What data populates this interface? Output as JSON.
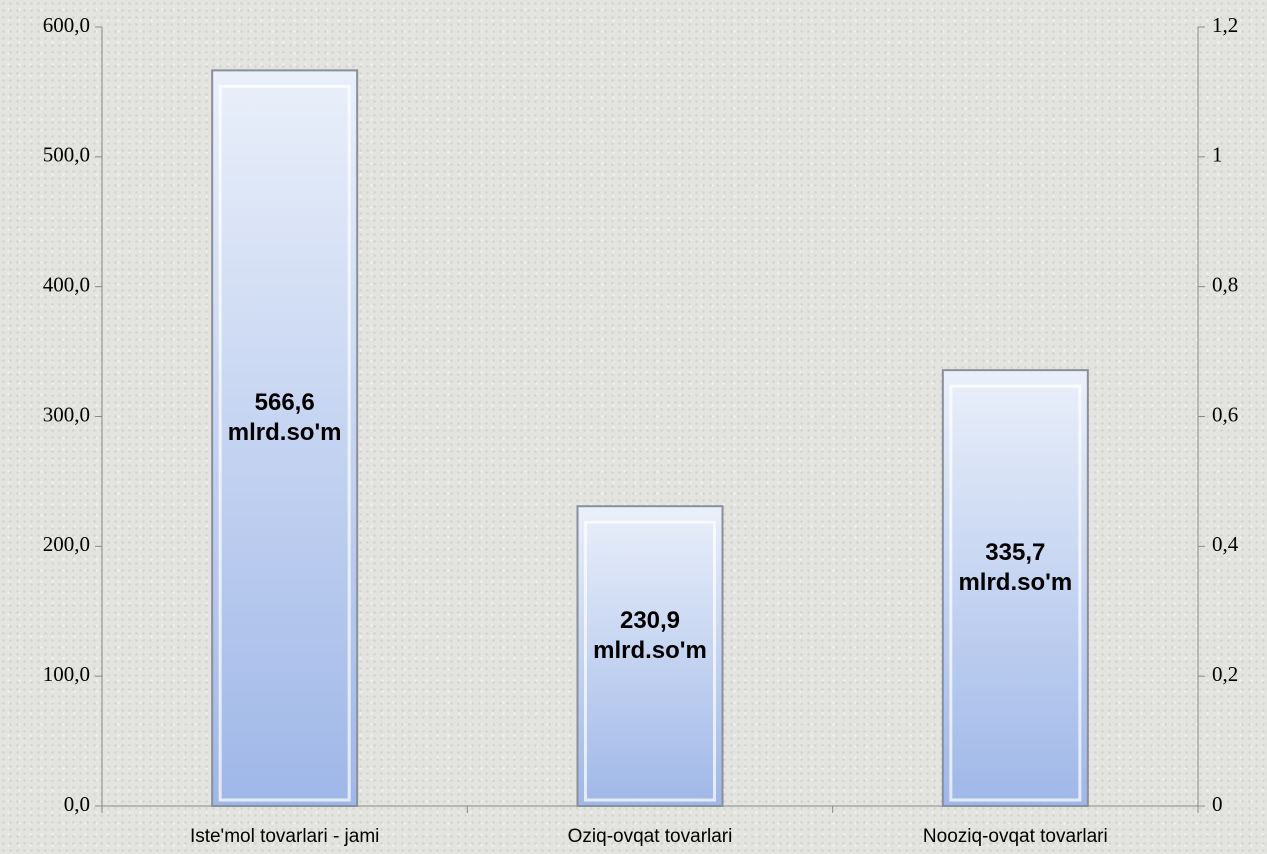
{
  "chart_data": {
    "type": "bar",
    "categories": [
      "Iste'mol tovarlari - jami",
      "Oziq-ovqat tovarlari",
      "Nooziq-ovqat tovarlari"
    ],
    "values": [
      566.6,
      230.9,
      335.7
    ],
    "value_labels": [
      "566,6\nmlrd.so'm",
      "230,9\nmlrd.so'm",
      "335,7\nmlrd.so'm"
    ],
    "ylim": [
      0,
      600
    ],
    "yticks": [
      {
        "value": 0,
        "label": "0,0"
      },
      {
        "value": 100,
        "label": "100,0"
      },
      {
        "value": 200,
        "label": "200,0"
      },
      {
        "value": 300,
        "label": "300,0"
      },
      {
        "value": 400,
        "label": "400,0"
      },
      {
        "value": 500,
        "label": "500,0"
      },
      {
        "value": 600,
        "label": "600,0"
      }
    ],
    "y2lim": [
      0,
      1.2
    ],
    "y2ticks": [
      0,
      {
        "value": 0.2,
        "label": "0,2"
      },
      {
        "value": 0.4,
        "label": "0,4"
      },
      {
        "value": 0.6,
        "label": "0,6"
      },
      {
        "value": 0.8,
        "label": "0,8"
      },
      1,
      {
        "value": 1.2,
        "label": "1,2"
      }
    ],
    "color": "#b4c8ec"
  }
}
